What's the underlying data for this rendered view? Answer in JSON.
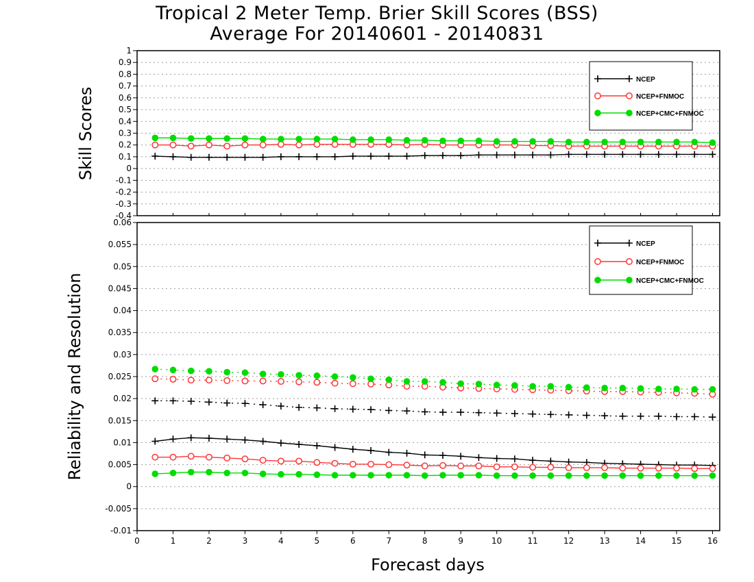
{
  "title": {
    "line1": "Tropical 2 Meter Temp. Brier Skill Scores (BSS)",
    "line2": "Average For 20140601 - 20140831"
  },
  "colors": {
    "ncep": "#000000",
    "fnmoc": "#ff3333",
    "cmc": "#00dd00",
    "grid": "#999999"
  },
  "chart_data": [
    {
      "type": "line",
      "panel": "top",
      "ylabel": "Skill Scores",
      "xlabel": "",
      "xlim": [
        0,
        16.2
      ],
      "ylim": [
        -0.4,
        1
      ],
      "yticks": [
        "1",
        "0.9",
        "0.8",
        "0.7",
        "0.6",
        "0.5",
        "0.4",
        "0.3",
        "0.2",
        "0.1",
        "0",
        "-0.1",
        "-0.2",
        "-0.3",
        "-0.4"
      ],
      "grid": true,
      "legend": "top-right",
      "x": [
        0.5,
        1,
        1.5,
        2,
        2.5,
        3,
        3.5,
        4,
        4.5,
        5,
        5.5,
        6,
        6.5,
        7,
        7.5,
        8,
        8.5,
        9,
        9.5,
        10,
        10.5,
        11,
        11.5,
        12,
        12.5,
        13,
        13.5,
        14,
        14.5,
        15,
        15.5,
        16
      ],
      "series": [
        {
          "name": "NCEP",
          "style": "solid-plus",
          "color": "#000000",
          "values": [
            0.105,
            0.1,
            0.095,
            0.095,
            0.095,
            0.095,
            0.095,
            0.1,
            0.1,
            0.1,
            0.1,
            0.105,
            0.105,
            0.105,
            0.105,
            0.11,
            0.11,
            0.11,
            0.115,
            0.115,
            0.115,
            0.115,
            0.115,
            0.12,
            0.12,
            0.12,
            0.12,
            0.12,
            0.12,
            0.12,
            0.12,
            0.12
          ]
        },
        {
          "name": "NCEP+FNMOC",
          "style": "solid-open-circle",
          "color": "#ff3333",
          "values": [
            0.2,
            0.2,
            0.19,
            0.2,
            0.19,
            0.2,
            0.2,
            0.205,
            0.2,
            0.205,
            0.205,
            0.205,
            0.205,
            0.205,
            0.2,
            0.205,
            0.2,
            0.2,
            0.2,
            0.2,
            0.2,
            0.195,
            0.195,
            0.19,
            0.19,
            0.19,
            0.19,
            0.19,
            0.19,
            0.19,
            0.19,
            0.19
          ]
        },
        {
          "name": "NCEP+CMC+FNMOC",
          "style": "solid-filled-circle",
          "color": "#00dd00",
          "values": [
            0.26,
            0.26,
            0.255,
            0.255,
            0.255,
            0.255,
            0.25,
            0.25,
            0.25,
            0.25,
            0.25,
            0.245,
            0.245,
            0.245,
            0.24,
            0.24,
            0.235,
            0.235,
            0.235,
            0.23,
            0.23,
            0.23,
            0.23,
            0.225,
            0.225,
            0.225,
            0.225,
            0.225,
            0.225,
            0.225,
            0.225,
            0.22
          ]
        }
      ]
    },
    {
      "type": "line",
      "panel": "bottom",
      "ylabel": "Reliability and Resolution",
      "xlabel": "Forecast days",
      "xlim": [
        0,
        16.2
      ],
      "ylim": [
        -0.01,
        0.06
      ],
      "yticks": [
        "0.06",
        "0.055",
        "0.05",
        "0.045",
        "0.04",
        "0.035",
        "0.03",
        "0.025",
        "0.02",
        "0.015",
        "0.01",
        "0.005",
        "0",
        "-0.005",
        "-0.01"
      ],
      "xticks": [
        "0",
        "1",
        "2",
        "3",
        "4",
        "5",
        "6",
        "7",
        "8",
        "9",
        "10",
        "11",
        "12",
        "13",
        "14",
        "15",
        "16"
      ],
      "grid": true,
      "legend": "top-right",
      "x": [
        0.5,
        1,
        1.5,
        2,
        2.5,
        3,
        3.5,
        4,
        4.5,
        5,
        5.5,
        6,
        6.5,
        7,
        7.5,
        8,
        8.5,
        9,
        9.5,
        10,
        10.5,
        11,
        11.5,
        12,
        12.5,
        13,
        13.5,
        14,
        14.5,
        15,
        15.5,
        16
      ],
      "series": [
        {
          "name": "NCEP",
          "group": "resolution",
          "style": "dotted-plus",
          "color": "#000000",
          "legend": false,
          "values": [
            0.0195,
            0.0195,
            0.0194,
            0.0192,
            0.019,
            0.0189,
            0.0186,
            0.0183,
            0.018,
            0.0179,
            0.0177,
            0.0176,
            0.0175,
            0.0173,
            0.0172,
            0.017,
            0.0169,
            0.0169,
            0.0168,
            0.0167,
            0.0166,
            0.0165,
            0.0164,
            0.0163,
            0.0162,
            0.0161,
            0.016,
            0.016,
            0.016,
            0.0159,
            0.0159,
            0.0158
          ]
        },
        {
          "name": "NCEP+FNMOC",
          "group": "resolution",
          "style": "dotted-open-circle",
          "color": "#ff3333",
          "legend": false,
          "values": [
            0.0245,
            0.0244,
            0.0242,
            0.0242,
            0.0241,
            0.024,
            0.024,
            0.0239,
            0.0238,
            0.0237,
            0.0235,
            0.0234,
            0.0233,
            0.0231,
            0.0228,
            0.0228,
            0.0226,
            0.0224,
            0.0223,
            0.0222,
            0.0221,
            0.022,
            0.0219,
            0.0218,
            0.0217,
            0.0216,
            0.0216,
            0.0215,
            0.0214,
            0.0213,
            0.0212,
            0.021
          ]
        },
        {
          "name": "NCEP+CMC+FNMOC",
          "group": "resolution",
          "style": "dotted-filled-circle",
          "color": "#00dd00",
          "legend": false,
          "values": [
            0.0267,
            0.0265,
            0.0263,
            0.0262,
            0.026,
            0.0259,
            0.0256,
            0.0255,
            0.0253,
            0.0252,
            0.025,
            0.0248,
            0.0245,
            0.0243,
            0.0239,
            0.0239,
            0.0237,
            0.0234,
            0.0233,
            0.0231,
            0.023,
            0.0228,
            0.0228,
            0.0226,
            0.0225,
            0.0224,
            0.0224,
            0.0223,
            0.0222,
            0.0222,
            0.0221,
            0.0221
          ]
        },
        {
          "name": "NCEP",
          "group": "reliability",
          "style": "solid-plus",
          "color": "#000000",
          "values": [
            0.0103,
            0.0108,
            0.0111,
            0.011,
            0.0108,
            0.0106,
            0.0103,
            0.0099,
            0.0096,
            0.0093,
            0.0089,
            0.0085,
            0.0082,
            0.0078,
            0.0076,
            0.0072,
            0.0071,
            0.0069,
            0.0066,
            0.0064,
            0.0063,
            0.006,
            0.0058,
            0.0056,
            0.0055,
            0.0053,
            0.0052,
            0.0051,
            0.005,
            0.0049,
            0.0049,
            0.0048
          ]
        },
        {
          "name": "NCEP+FNMOC",
          "group": "reliability",
          "style": "solid-open-circle",
          "color": "#ff3333",
          "values": [
            0.0067,
            0.0067,
            0.0069,
            0.0067,
            0.0065,
            0.0063,
            0.006,
            0.0058,
            0.0058,
            0.0055,
            0.0053,
            0.0051,
            0.0051,
            0.005,
            0.0049,
            0.0047,
            0.0048,
            0.0047,
            0.0047,
            0.0045,
            0.0045,
            0.0044,
            0.0044,
            0.0043,
            0.0043,
            0.0043,
            0.0042,
            0.0042,
            0.0042,
            0.0042,
            0.0041,
            0.0041
          ]
        },
        {
          "name": "NCEP+CMC+FNMOC",
          "group": "reliability",
          "style": "solid-filled-circle",
          "color": "#00dd00",
          "values": [
            0.0029,
            0.0031,
            0.0033,
            0.0033,
            0.0031,
            0.0031,
            0.0029,
            0.0028,
            0.0028,
            0.0027,
            0.0026,
            0.0026,
            0.0026,
            0.0026,
            0.0026,
            0.0025,
            0.0026,
            0.0026,
            0.0026,
            0.0025,
            0.0025,
            0.0025,
            0.0025,
            0.0025,
            0.0025,
            0.0025,
            0.0025,
            0.0025,
            0.0025,
            0.0025,
            0.0025,
            0.0025
          ]
        }
      ]
    }
  ]
}
